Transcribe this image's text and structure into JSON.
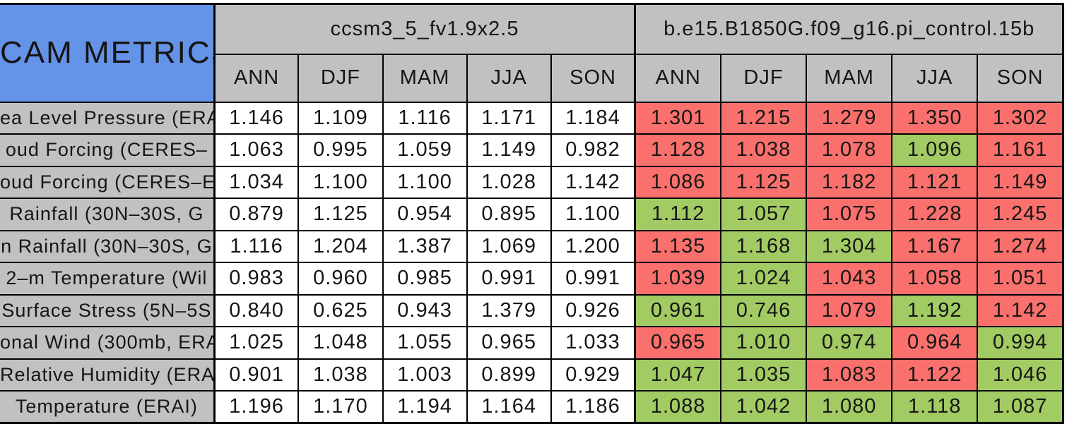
{
  "colors": {
    "title_bg": "#6593E8",
    "header_bg": "#C1C1C1",
    "cell_white": "#FFFFFF",
    "cell_red": "#F9706C",
    "cell_green": "#A2CB63",
    "border": "#000000",
    "text": "#161616",
    "page_bg": "#FFFFFF"
  },
  "chart_data": {
    "type": "table",
    "title": "CAM METRICS",
    "column_groups": [
      {
        "label": "ccsm3_5_fv1.9x2.5",
        "seasons": [
          "ANN",
          "DJF",
          "MAM",
          "JJA",
          "SON"
        ]
      },
      {
        "label": "b.e15.B1850G.f09_g16.pi_control.15b",
        "seasons": [
          "ANN",
          "DJF",
          "MAM",
          "JJA",
          "SON"
        ]
      }
    ],
    "rows": [
      {
        "label": "ea Level Pressure (ERAI",
        "group1_values": [
          "1.146",
          "1.109",
          "1.116",
          "1.171",
          "1.184"
        ],
        "group1_colors": [
          "white",
          "white",
          "white",
          "white",
          "white"
        ],
        "group2_values": [
          "1.301",
          "1.215",
          "1.279",
          "1.350",
          "1.302"
        ],
        "group2_colors": [
          "red",
          "red",
          "red",
          "red",
          "red"
        ]
      },
      {
        "label": "oud Forcing (CERES–",
        "group1_values": [
          "1.063",
          "0.995",
          "1.059",
          "1.149",
          "0.982"
        ],
        "group1_colors": [
          "white",
          "white",
          "white",
          "white",
          "white"
        ],
        "group2_values": [
          "1.128",
          "1.038",
          "1.078",
          "1.096",
          "1.161"
        ],
        "group2_colors": [
          "red",
          "red",
          "red",
          "green",
          "red"
        ]
      },
      {
        "label": "oud Forcing (CERES–E",
        "group1_values": [
          "1.034",
          "1.100",
          "1.100",
          "1.028",
          "1.142"
        ],
        "group1_colors": [
          "white",
          "white",
          "white",
          "white",
          "white"
        ],
        "group2_values": [
          "1.086",
          "1.125",
          "1.182",
          "1.121",
          "1.149"
        ],
        "group2_colors": [
          "red",
          "red",
          "red",
          "red",
          "red"
        ]
      },
      {
        "label": "Rainfall (30N–30S, G",
        "group1_values": [
          "0.879",
          "1.125",
          "0.954",
          "0.895",
          "1.100"
        ],
        "group1_colors": [
          "white",
          "white",
          "white",
          "white",
          "white"
        ],
        "group2_values": [
          "1.112",
          "1.057",
          "1.075",
          "1.228",
          "1.245"
        ],
        "group2_colors": [
          "green",
          "green",
          "red",
          "red",
          "red"
        ]
      },
      {
        "label": "n Rainfall (30N–30S, G",
        "group1_values": [
          "1.116",
          "1.204",
          "1.387",
          "1.069",
          "1.200"
        ],
        "group1_colors": [
          "white",
          "white",
          "white",
          "white",
          "white"
        ],
        "group2_values": [
          "1.135",
          "1.168",
          "1.304",
          "1.167",
          "1.274"
        ],
        "group2_colors": [
          "red",
          "green",
          "green",
          "red",
          "red"
        ]
      },
      {
        "label": "2–m Temperature (Wil",
        "group1_values": [
          "0.983",
          "0.960",
          "0.985",
          "0.991",
          "0.991"
        ],
        "group1_colors": [
          "white",
          "white",
          "white",
          "white",
          "white"
        ],
        "group2_values": [
          "1.039",
          "1.024",
          "1.043",
          "1.058",
          "1.051"
        ],
        "group2_colors": [
          "red",
          "green",
          "red",
          "red",
          "red"
        ]
      },
      {
        "label": "Surface Stress (5N–5S",
        "group1_values": [
          "0.840",
          "0.625",
          "0.943",
          "1.379",
          "0.926"
        ],
        "group1_colors": [
          "white",
          "white",
          "white",
          "white",
          "white"
        ],
        "group2_values": [
          "0.961",
          "0.746",
          "1.079",
          "1.192",
          "1.142"
        ],
        "group2_colors": [
          "green",
          "green",
          "red",
          "green",
          "red"
        ]
      },
      {
        "label": "onal Wind (300mb, ERA",
        "group1_values": [
          "1.025",
          "1.048",
          "1.055",
          "0.965",
          "1.033"
        ],
        "group1_colors": [
          "white",
          "white",
          "white",
          "white",
          "white"
        ],
        "group2_values": [
          "0.965",
          "1.010",
          "0.974",
          "0.964",
          "0.994"
        ],
        "group2_colors": [
          "red",
          "green",
          "green",
          "red",
          "green"
        ]
      },
      {
        "label": "Relative Humidity (ERAI",
        "group1_values": [
          "0.901",
          "1.038",
          "1.003",
          "0.899",
          "0.929"
        ],
        "group1_colors": [
          "white",
          "white",
          "white",
          "white",
          "white"
        ],
        "group2_values": [
          "1.047",
          "1.035",
          "1.083",
          "1.122",
          "1.046"
        ],
        "group2_colors": [
          "green",
          "green",
          "red",
          "red",
          "green"
        ]
      },
      {
        "label": "Temperature (ERAI)",
        "group1_values": [
          "1.196",
          "1.170",
          "1.194",
          "1.164",
          "1.186"
        ],
        "group1_colors": [
          "white",
          "white",
          "white",
          "white",
          "white"
        ],
        "group2_values": [
          "1.088",
          "1.042",
          "1.080",
          "1.118",
          "1.087"
        ],
        "group2_colors": [
          "green",
          "green",
          "green",
          "green",
          "green"
        ]
      }
    ]
  }
}
